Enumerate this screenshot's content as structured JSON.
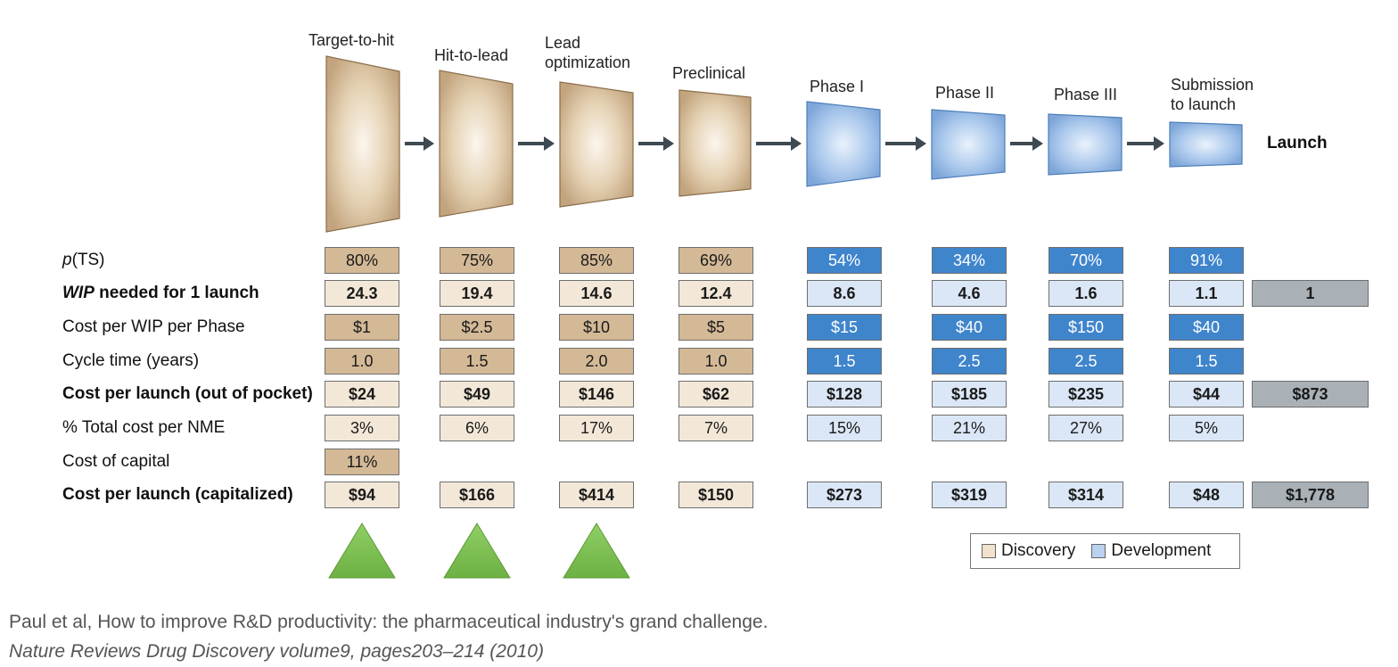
{
  "stages": [
    {
      "label_lines": [
        "Target-to-hit"
      ],
      "group": "discovery"
    },
    {
      "label_lines": [
        "Hit-to-lead"
      ],
      "group": "discovery"
    },
    {
      "label_lines": [
        "Lead",
        "optimization"
      ],
      "group": "discovery"
    },
    {
      "label_lines": [
        "Preclinical"
      ],
      "group": "discovery"
    },
    {
      "label_lines": [
        "Phase I"
      ],
      "group": "development"
    },
    {
      "label_lines": [
        "Phase II"
      ],
      "group": "development"
    },
    {
      "label_lines": [
        "Phase III"
      ],
      "group": "development"
    },
    {
      "label_lines": [
        "Submission",
        "to launch"
      ],
      "group": "development"
    }
  ],
  "launch_label": "Launch",
  "rows": [
    {
      "label_prefix": "p",
      "label": "(TS)",
      "italic_prefix": true,
      "bold": false,
      "shade": "dark",
      "values": [
        "80%",
        "75%",
        "85%",
        "69%",
        "54%",
        "34%",
        "70%",
        "91%"
      ],
      "total": null
    },
    {
      "label_prefix": "WIP",
      "label": " needed for 1 launch",
      "italic_prefix": true,
      "bold": true,
      "shade": "light",
      "values": [
        "24.3",
        "19.4",
        "14.6",
        "12.4",
        "8.6",
        "4.6",
        "1.6",
        "1.1"
      ],
      "total": "1"
    },
    {
      "label_prefix": "",
      "label": "Cost per WIP per Phase",
      "bold": false,
      "shade": "dark",
      "values": [
        "$1",
        "$2.5",
        "$10",
        "$5",
        "$15",
        "$40",
        "$150",
        "$40"
      ],
      "total": null
    },
    {
      "label_prefix": "",
      "label": "Cycle time (years)",
      "bold": false,
      "shade": "dark",
      "values": [
        "1.0",
        "1.5",
        "2.0",
        "1.0",
        "1.5",
        "2.5",
        "2.5",
        "1.5"
      ],
      "total": null
    },
    {
      "label_prefix": "",
      "label": "Cost per launch (out of pocket)",
      "bold": true,
      "shade": "light",
      "values": [
        "$24",
        "$49",
        "$146",
        "$62",
        "$128",
        "$185",
        "$235",
        "$44"
      ],
      "total": "$873"
    },
    {
      "label_prefix": "",
      "label": "% Total cost per NME",
      "bold": false,
      "shade": "light",
      "values": [
        "3%",
        "6%",
        "17%",
        "7%",
        "15%",
        "21%",
        "27%",
        "5%"
      ],
      "total": null
    },
    {
      "label_prefix": "",
      "label": "Cost of capital",
      "bold": false,
      "shade": "dark",
      "values": [
        "11%",
        null,
        null,
        null,
        null,
        null,
        null,
        null
      ],
      "total": null
    },
    {
      "label_prefix": "",
      "label": "Cost per launch (capitalized)",
      "bold": true,
      "shade": "light",
      "values": [
        "$94",
        "$166",
        "$414",
        "$150",
        "$273",
        "$319",
        "$314",
        "$48"
      ],
      "total": "$1,778"
    }
  ],
  "legend": {
    "discovery": "Discovery",
    "development": "Development"
  },
  "colors": {
    "discovery_dark": "#d4b996",
    "discovery_light": "#f3e8d8",
    "development_dark": "#3f85cc",
    "development_light": "#dbe7f6",
    "total": "#a9b1b7",
    "arrow": "#3e4a52",
    "triangle": "#7cbf4f"
  },
  "highlighted_stages": [
    0,
    1,
    2
  ],
  "citation": {
    "line1": "Paul et al, How to improve R&D productivity: the pharmaceutical industry's grand challenge.",
    "line2": "Nature Reviews Drug Discovery volume9, pages203–214 (2010)"
  }
}
